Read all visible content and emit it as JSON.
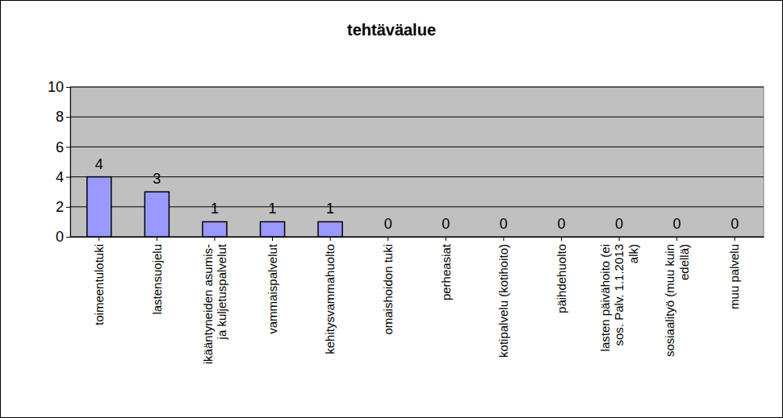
{
  "chart_data": {
    "type": "bar",
    "title": "tehtäväalue",
    "categories": [
      "toimeentulotuki",
      "lastensuojelu",
      "ikääntyneiden asumis- ja kuljetuspalvelut",
      "vammaispalvelut",
      "kehitysvammahuolto",
      "omaishoidon tuki",
      "perheasiat",
      "kotipalvelu (kotihoito)",
      "päihdehuolto",
      "lasten päivähoito (ei sos. Palv. 1.1.2013 alk)",
      "sosiaalityö (muu kuin edellä)",
      "muu palvelu"
    ],
    "values": [
      4,
      3,
      1,
      1,
      1,
      0,
      0,
      0,
      0,
      0,
      0,
      0
    ],
    "color": "#9999ff",
    "ylim": [
      0,
      10
    ],
    "yticks": [
      0,
      2,
      4,
      6,
      8,
      10
    ],
    "grid": true,
    "data_labels": true
  }
}
